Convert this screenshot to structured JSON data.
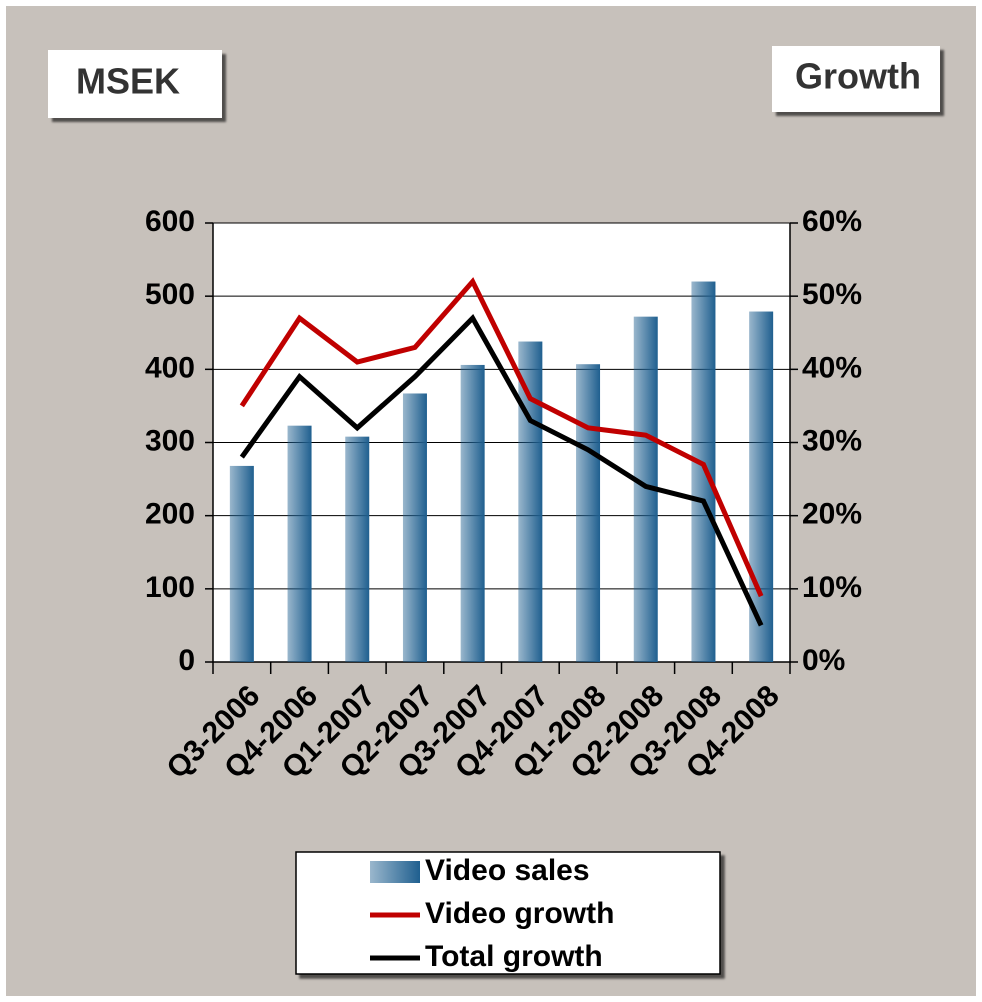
{
  "chart_data": {
    "type": "bar_line",
    "y_axis_label": "MSEK",
    "y2_axis_label": "Growth",
    "categories": [
      "Q3-2006",
      "Q4-2006",
      "Q1-2007",
      "Q2-2007",
      "Q3-2007",
      "Q4-2007",
      "Q1-2008",
      "Q2-2008",
      "Q3-2008",
      "Q4-2008"
    ],
    "series": [
      {
        "name": "Video sales",
        "type": "bar",
        "color": "#1f5f8f",
        "values": [
          268,
          323,
          308,
          367,
          406,
          438,
          407,
          472,
          520,
          479
        ]
      },
      {
        "name": "Video growth",
        "type": "line",
        "axis": "y2",
        "color": "#c00000",
        "values": [
          35,
          47,
          41,
          43,
          52,
          36,
          32,
          31,
          27,
          9
        ]
      },
      {
        "name": "Total growth",
        "type": "line",
        "axis": "y2",
        "color": "#000000",
        "values": [
          28,
          39,
          32,
          39,
          47,
          33,
          29,
          24,
          22,
          5
        ]
      }
    ],
    "ylim": [
      0,
      600
    ],
    "yticks": [
      0,
      100,
      200,
      300,
      400,
      500,
      600
    ],
    "y2lim": [
      0,
      60
    ],
    "y2ticks": [
      {
        "value": 0,
        "label": "0%"
      },
      {
        "value": 10,
        "label": "10%"
      },
      {
        "value": 20,
        "label": "20%"
      },
      {
        "value": 30,
        "label": "30%"
      },
      {
        "value": 40,
        "label": "40%"
      },
      {
        "value": 50,
        "label": "50%"
      },
      {
        "value": 60,
        "label": "60%"
      }
    ],
    "grid": true,
    "legend": "bottom"
  }
}
